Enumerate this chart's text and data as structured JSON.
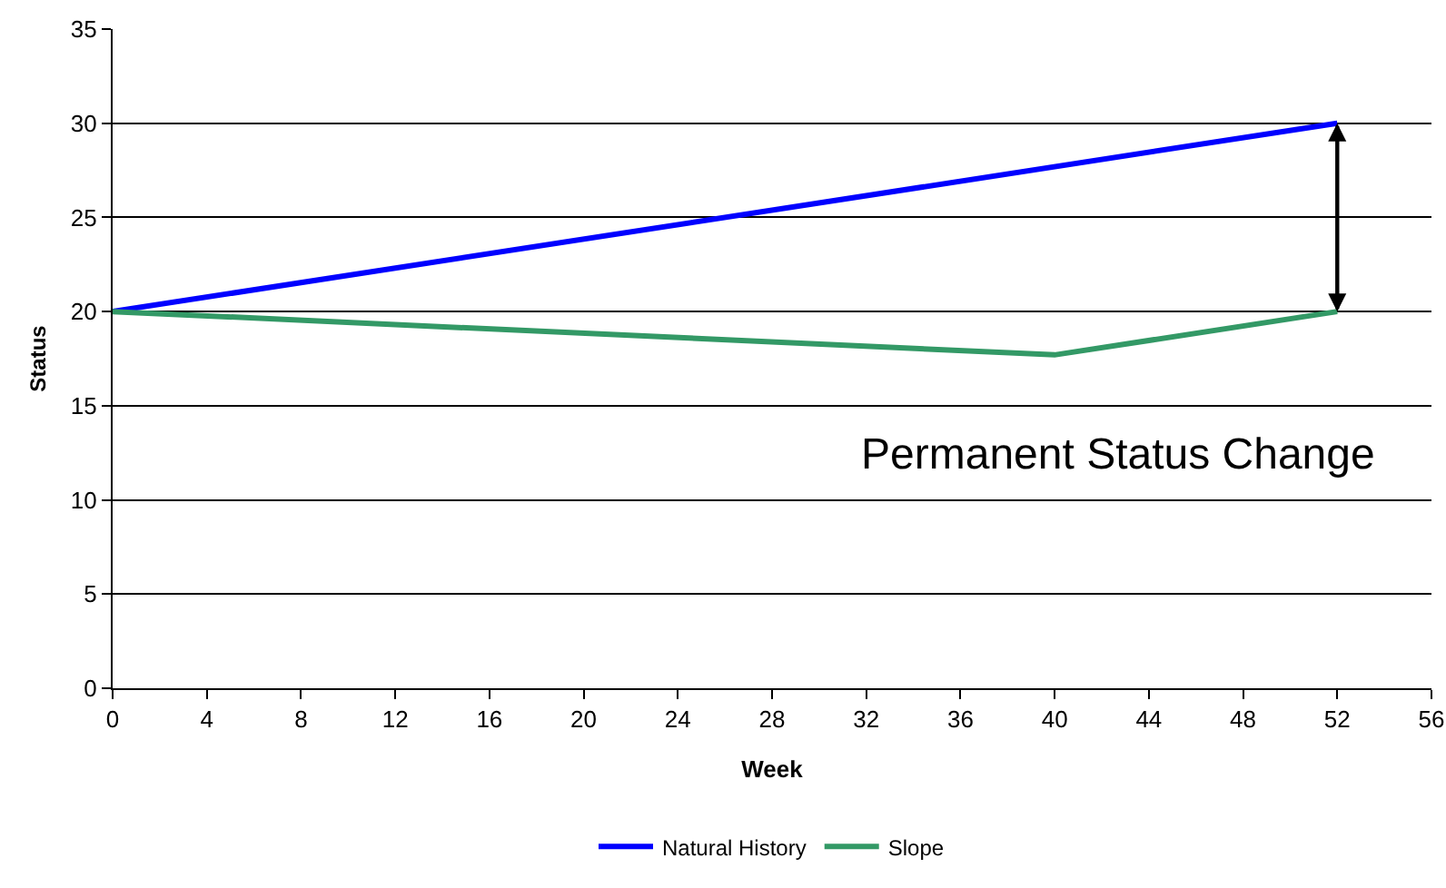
{
  "chart_data": {
    "type": "line",
    "xlabel": "Week",
    "ylabel": "Status",
    "series": [
      {
        "name": "Natural History",
        "color": "#0000ff",
        "x": [
          0,
          52
        ],
        "values": [
          20,
          30
        ]
      },
      {
        "name": "Slope",
        "color": "#339966",
        "x": [
          0,
          40,
          52
        ],
        "values": [
          20,
          17.7,
          20
        ]
      }
    ],
    "xlim": [
      0,
      56
    ],
    "xticks": [
      0,
      4,
      8,
      12,
      16,
      20,
      24,
      28,
      32,
      36,
      40,
      44,
      48,
      52,
      56
    ],
    "ylim": [
      0,
      35
    ],
    "yticks": [
      0,
      5,
      10,
      15,
      20,
      25,
      30,
      35
    ],
    "grid": "y",
    "legend": "bottom",
    "marker": "none",
    "line_style": "solid",
    "annotations": [
      "Permanent Status Change"
    ]
  }
}
